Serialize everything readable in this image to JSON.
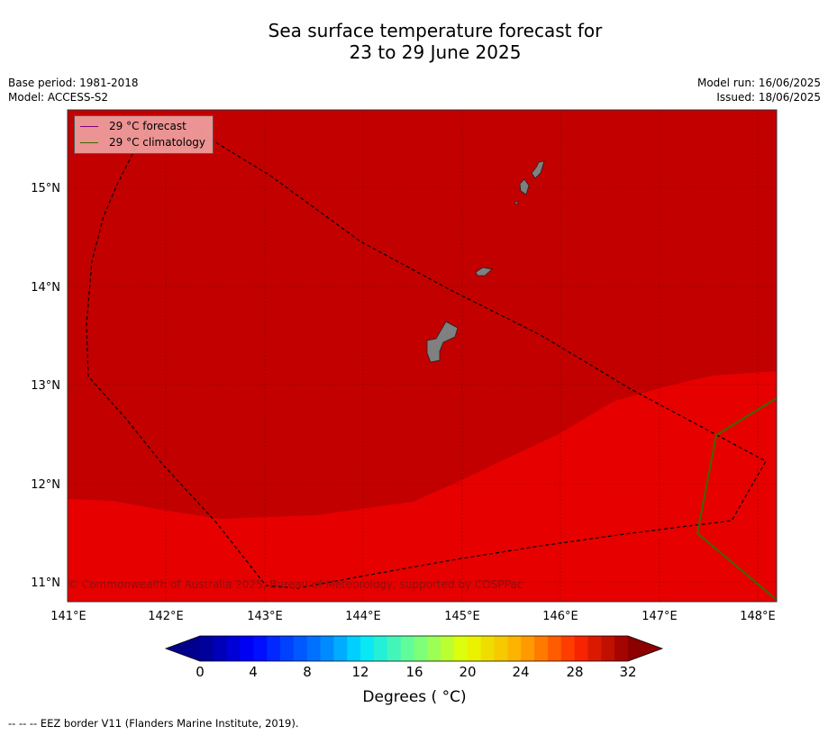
{
  "title_line1": "Sea surface temperature forecast for",
  "title_line2": "23 to 29 June 2025",
  "meta_left": [
    "Base period: 1981-2018",
    "Model: ACCESS-S2"
  ],
  "meta_right": [
    "Model run: 16/06/2025",
    "Issued: 18/06/2025"
  ],
  "legend": [
    {
      "label": "29 °C  forecast",
      "color": "#7a0080"
    },
    {
      "label": "29 °C  climatology",
      "color": "#3a6a00"
    }
  ],
  "lon_ticks": [
    "141°E",
    "142°E",
    "143°E",
    "144°E",
    "145°E",
    "146°E",
    "147°E",
    "148°E"
  ],
  "lat_ticks": [
    "15°N",
    "14°N",
    "13°N",
    "12°N",
    "11°N"
  ],
  "copyright": "© Commonwealth of Australia 2025, Bureau of Meteorology, supported by COSPPac",
  "colorbar": {
    "ticks": [
      "0",
      "4",
      "8",
      "12",
      "16",
      "20",
      "24",
      "28",
      "32"
    ],
    "label": "Degrees ( °C)"
  },
  "footnote": "--  --  -- EEZ border V11 (Flanders Marine Institute, 2019).",
  "colors": {
    "warm_region": "#c20000",
    "cooler_region": "#e60000",
    "land": "#808080"
  }
}
